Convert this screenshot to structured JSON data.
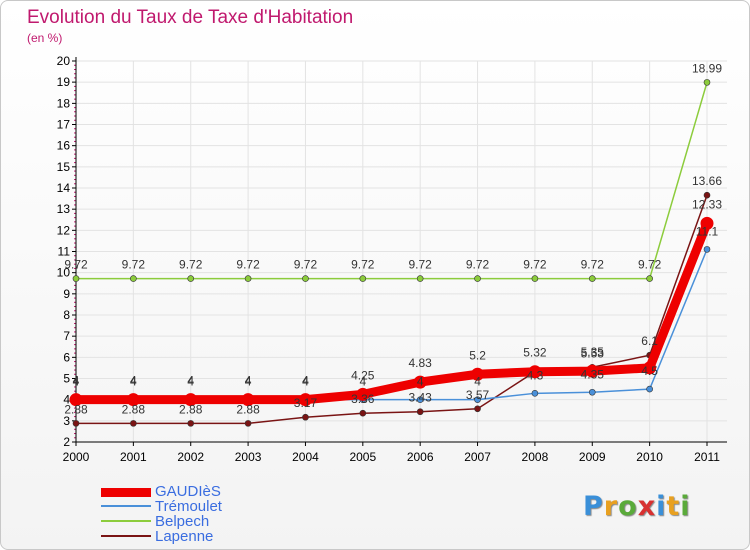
{
  "title": "Evolution du Taux de Taxe d'Habitation",
  "unit": "(en %)",
  "logo_text": "Proxiti",
  "colors": {
    "title": "#c0196e",
    "legend_text": "#3a6de0",
    "axis": "#000000",
    "grid": "#e3e3e3"
  },
  "chart_data": {
    "type": "line",
    "title": "Evolution du Taux de Taxe d'Habitation",
    "ylabel": "(en %)",
    "x": [
      "2000",
      "2001",
      "2002",
      "2003",
      "2004",
      "2005",
      "2006",
      "2007",
      "2008",
      "2009",
      "2010",
      "2011"
    ],
    "ylim": [
      2,
      20
    ],
    "yticks": [
      "2",
      "3",
      "4",
      "5",
      "6",
      "7",
      "8",
      "9",
      "10",
      "11",
      "12",
      "13",
      "14",
      "15",
      "16",
      "17",
      "18",
      "19",
      "20"
    ],
    "grid": true,
    "legend_position": "bottom-left",
    "series": [
      {
        "name": "GAUDIèS",
        "color": "#ee0000",
        "values": [
          4,
          4,
          4,
          4,
          4,
          4.25,
          4.83,
          5.2,
          5.32,
          5.35,
          5.5,
          12.33
        ],
        "labels": [
          "4",
          "4",
          "4",
          "4",
          "4",
          "4.25",
          "4.83",
          "5.2",
          "5.32",
          "5.35",
          "",
          "12.33"
        ]
      },
      {
        "name": "Trémoulet",
        "color": "#4a90d9",
        "values": [
          4,
          4,
          4,
          4,
          4,
          4,
          4,
          4,
          4.3,
          4.35,
          4.5,
          11.1
        ],
        "labels": [
          "4",
          "4",
          "4",
          "4",
          "4",
          "4",
          "4",
          "4",
          "4.3",
          "4.35",
          "4.5",
          "11.1"
        ]
      },
      {
        "name": "Belpech",
        "color": "#8ccc3c",
        "values": [
          9.72,
          9.72,
          9.72,
          9.72,
          9.72,
          9.72,
          9.72,
          9.72,
          9.72,
          9.72,
          9.72,
          18.99
        ],
        "labels": [
          "9.72",
          "9.72",
          "9.72",
          "9.72",
          "9.72",
          "9.72",
          "9.72",
          "9.72",
          "9.72",
          "9.72",
          "9.72",
          "18.99"
        ]
      },
      {
        "name": "Lapenne",
        "color": "#7a1414",
        "values": [
          2.88,
          2.88,
          2.88,
          2.88,
          3.17,
          3.36,
          3.43,
          3.57,
          5.32,
          5.53,
          6.1,
          13.66
        ],
        "labels": [
          "2.88",
          "2.88",
          "2.88",
          "2.88",
          "3.17",
          "3.36",
          "3.43",
          "3.57",
          "",
          "5.53",
          "6.1",
          "13.66"
        ]
      }
    ]
  }
}
